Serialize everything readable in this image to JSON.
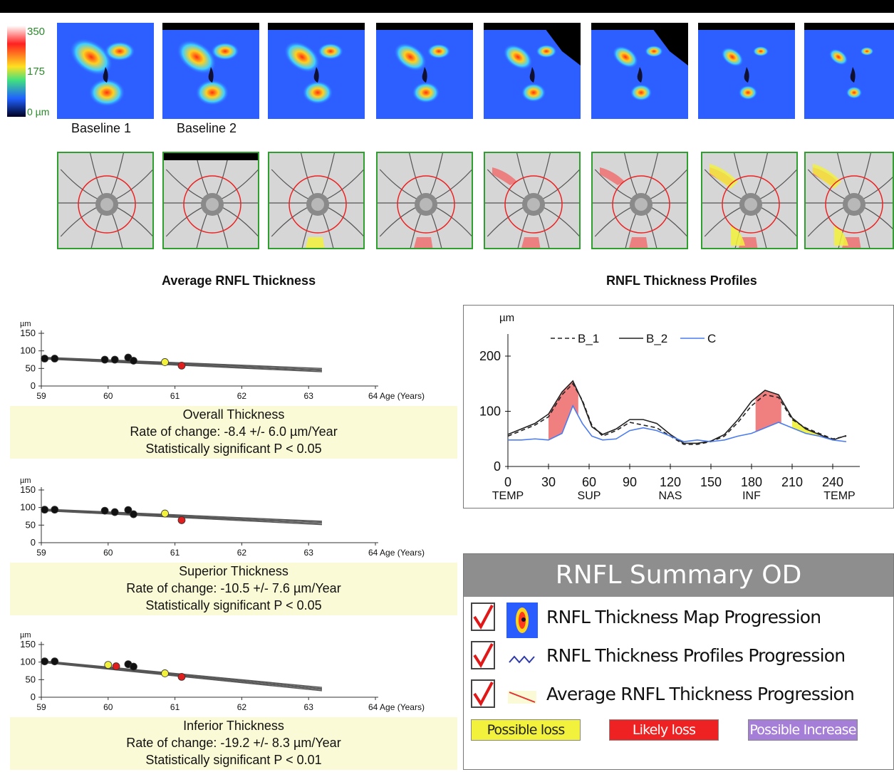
{
  "color_scale": {
    "max_label": "350",
    "mid_label": "175",
    "min_label": "0 µm"
  },
  "baseline_labels": [
    "Baseline 1",
    "Baseline 2"
  ],
  "sections": {
    "average_title": "Average RNFL Thickness",
    "profiles_title": "RNFL Thickness Profiles"
  },
  "colors": {
    "possible_loss": "#f2f23c",
    "likely_loss": "#ee2222",
    "possible_increase": "#a57ed8",
    "caption_bg": "#fafad6"
  },
  "trend_axis": {
    "unit": "µm",
    "age_label": "64 Age (Years)"
  },
  "trend_captions": [
    {
      "title": "Overall Thickness",
      "rate": "Rate of change: -8.4 +/- 6.0 µm/Year",
      "sig": "Statistically significant P < 0.05"
    },
    {
      "title": "Superior Thickness",
      "rate": "Rate of change: -10.5 +/- 7.6 µm/Year",
      "sig": "Statistically significant P < 0.05"
    },
    {
      "title": "Inferior Thickness",
      "rate": "Rate of change: -19.2 +/- 8.3 µm/Year",
      "sig": "Statistically significant P < 0.01"
    }
  ],
  "profile_legend": {
    "b1": "B_1",
    "b2": "B_2",
    "c": "C"
  },
  "summary": {
    "title": "RNFL Summary OD",
    "items": [
      "RNFL Thickness Map Progression",
      "RNFL Thickness Profiles Progression",
      "Average RNFL Thickness Progression"
    ],
    "legend": [
      "Possible loss",
      "Likely loss",
      "Possible Increase"
    ]
  },
  "chart_data": [
    {
      "type": "scatter",
      "x_ticks": [
        59,
        60,
        61,
        62,
        63,
        64
      ],
      "xlim": [
        59,
        64
      ],
      "ylim": [
        0,
        150
      ],
      "y_ticks": [
        0,
        50,
        100,
        150
      ],
      "points": [
        [
          59.05,
          78,
          "black"
        ],
        [
          59.2,
          78,
          "black"
        ],
        [
          59.95,
          75,
          "black"
        ],
        [
          60.1,
          75,
          "black"
        ],
        [
          60.3,
          81,
          "black"
        ],
        [
          60.38,
          72,
          "black"
        ],
        [
          60.85,
          68,
          "yellow"
        ],
        [
          61.1,
          58,
          "red"
        ]
      ],
      "trend": [
        [
          59,
          82
        ],
        [
          63.2,
          46
        ]
      ]
    },
    {
      "type": "scatter",
      "x_ticks": [
        59,
        60,
        61,
        62,
        63,
        64
      ],
      "xlim": [
        59,
        64
      ],
      "ylim": [
        0,
        150
      ],
      "y_ticks": [
        0,
        50,
        100,
        150
      ],
      "points": [
        [
          59.05,
          94,
          "black"
        ],
        [
          59.2,
          94,
          "black"
        ],
        [
          59.95,
          91,
          "black"
        ],
        [
          60.1,
          87,
          "black"
        ],
        [
          60.3,
          93,
          "black"
        ],
        [
          60.38,
          81,
          "black"
        ],
        [
          60.85,
          83,
          "yellow"
        ],
        [
          61.1,
          64,
          "red"
        ]
      ],
      "trend": [
        [
          59,
          96
        ],
        [
          63.2,
          57
        ]
      ]
    },
    {
      "type": "scatter",
      "x_ticks": [
        59,
        60,
        61,
        62,
        63,
        64
      ],
      "xlim": [
        59,
        64
      ],
      "ylim": [
        0,
        150
      ],
      "y_ticks": [
        0,
        50,
        100,
        150
      ],
      "points": [
        [
          59.05,
          102,
          "black"
        ],
        [
          59.2,
          102,
          "black"
        ],
        [
          60,
          92,
          "yellow"
        ],
        [
          60.12,
          88,
          "red"
        ],
        [
          60.3,
          94,
          "black"
        ],
        [
          60.38,
          87,
          "black"
        ],
        [
          60.85,
          68,
          "yellow"
        ],
        [
          61.1,
          58,
          "red"
        ]
      ],
      "trend": [
        [
          59,
          104
        ],
        [
          63.2,
          24
        ]
      ]
    },
    {
      "type": "line",
      "ylabel": "µm",
      "xlim": [
        0,
        260
      ],
      "ylim": [
        0,
        240
      ],
      "x_ticks": [
        0,
        30,
        60,
        90,
        120,
        150,
        180,
        210,
        240
      ],
      "x_tick_sub": {
        "0": "TEMP",
        "60": "SUP",
        "120": "NAS",
        "180": "INF",
        "245": "TEMP"
      },
      "y_ticks": [
        0,
        100,
        200
      ],
      "series": [
        {
          "name": "B_1",
          "style": "dashed",
          "x": [
            0,
            10,
            20,
            30,
            40,
            48,
            55,
            62,
            70,
            80,
            90,
            100,
            110,
            120,
            130,
            140,
            150,
            160,
            170,
            180,
            190,
            200,
            210,
            220,
            230,
            240,
            250
          ],
          "values": [
            55,
            65,
            75,
            90,
            130,
            150,
            120,
            75,
            55,
            65,
            80,
            75,
            70,
            55,
            40,
            40,
            45,
            55,
            80,
            110,
            130,
            125,
            85,
            70,
            60,
            50,
            55
          ]
        },
        {
          "name": "B_2",
          "style": "solid",
          "x": [
            0,
            10,
            20,
            30,
            40,
            48,
            55,
            62,
            70,
            80,
            90,
            100,
            110,
            120,
            130,
            140,
            150,
            160,
            170,
            180,
            190,
            200,
            210,
            220,
            230,
            240,
            250
          ],
          "values": [
            58,
            68,
            78,
            95,
            135,
            155,
            118,
            72,
            58,
            68,
            85,
            85,
            78,
            58,
            42,
            42,
            46,
            58,
            85,
            118,
            138,
            130,
            88,
            68,
            58,
            48,
            56
          ]
        },
        {
          "name": "C",
          "style": "solid-blue",
          "x": [
            0,
            10,
            20,
            30,
            40,
            48,
            55,
            62,
            70,
            80,
            90,
            100,
            110,
            120,
            130,
            140,
            150,
            160,
            170,
            180,
            190,
            200,
            210,
            220,
            230,
            240,
            250
          ],
          "values": [
            48,
            48,
            50,
            48,
            60,
            110,
            78,
            55,
            48,
            50,
            65,
            70,
            65,
            55,
            45,
            48,
            45,
            48,
            55,
            60,
            70,
            80,
            70,
            60,
            55,
            48,
            45
          ]
        }
      ],
      "highlight_regions": [
        {
          "x_start": 30,
          "x_end": 52,
          "color": "red"
        },
        {
          "x_start": 183,
          "x_end": 202,
          "color": "red"
        },
        {
          "x_start": 210,
          "x_end": 230,
          "color": "yellow"
        }
      ]
    }
  ]
}
